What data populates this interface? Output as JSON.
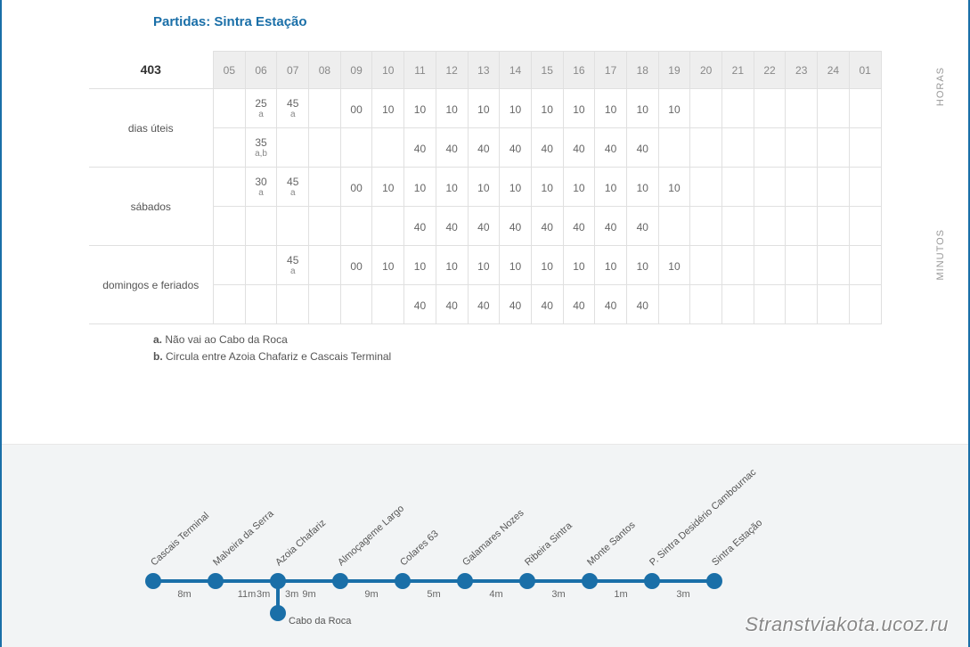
{
  "title": "Partidas: Sintra Estação",
  "route_number": "403",
  "side_labels": {
    "horas": "HORAS",
    "minutos": "MINUTOS"
  },
  "hours": [
    "05",
    "06",
    "07",
    "08",
    "09",
    "10",
    "11",
    "12",
    "13",
    "14",
    "15",
    "16",
    "17",
    "18",
    "19",
    "20",
    "21",
    "22",
    "23",
    "24",
    "01"
  ],
  "groups": [
    {
      "label": "dias úteis",
      "rows": [
        [
          null,
          {
            "m": "25",
            "n": "a"
          },
          {
            "m": "45",
            "n": "a"
          },
          null,
          {
            "m": "00"
          },
          {
            "m": "10"
          },
          {
            "m": "10"
          },
          {
            "m": "10"
          },
          {
            "m": "10"
          },
          {
            "m": "10"
          },
          {
            "m": "10"
          },
          {
            "m": "10"
          },
          {
            "m": "10"
          },
          {
            "m": "10"
          },
          {
            "m": "10"
          },
          null,
          null,
          null,
          null,
          null,
          null
        ],
        [
          null,
          {
            "m": "35",
            "n": "a,b"
          },
          null,
          null,
          null,
          null,
          {
            "m": "40"
          },
          {
            "m": "40"
          },
          {
            "m": "40"
          },
          {
            "m": "40"
          },
          {
            "m": "40"
          },
          {
            "m": "40"
          },
          {
            "m": "40"
          },
          {
            "m": "40"
          },
          null,
          null,
          null,
          null,
          null,
          null,
          null
        ]
      ]
    },
    {
      "label": "sábados",
      "rows": [
        [
          null,
          {
            "m": "30",
            "n": "a"
          },
          {
            "m": "45",
            "n": "a"
          },
          null,
          {
            "m": "00"
          },
          {
            "m": "10"
          },
          {
            "m": "10"
          },
          {
            "m": "10"
          },
          {
            "m": "10"
          },
          {
            "m": "10"
          },
          {
            "m": "10"
          },
          {
            "m": "10"
          },
          {
            "m": "10"
          },
          {
            "m": "10"
          },
          {
            "m": "10"
          },
          null,
          null,
          null,
          null,
          null,
          null
        ],
        [
          null,
          null,
          null,
          null,
          null,
          null,
          {
            "m": "40"
          },
          {
            "m": "40"
          },
          {
            "m": "40"
          },
          {
            "m": "40"
          },
          {
            "m": "40"
          },
          {
            "m": "40"
          },
          {
            "m": "40"
          },
          {
            "m": "40"
          },
          null,
          null,
          null,
          null,
          null,
          null,
          null
        ]
      ]
    },
    {
      "label": "domingos e feriados",
      "rows": [
        [
          null,
          null,
          {
            "m": "45",
            "n": "a"
          },
          null,
          {
            "m": "00"
          },
          {
            "m": "10"
          },
          {
            "m": "10"
          },
          {
            "m": "10"
          },
          {
            "m": "10"
          },
          {
            "m": "10"
          },
          {
            "m": "10"
          },
          {
            "m": "10"
          },
          {
            "m": "10"
          },
          {
            "m": "10"
          },
          {
            "m": "10"
          },
          null,
          null,
          null,
          null,
          null,
          null
        ],
        [
          null,
          null,
          null,
          null,
          null,
          null,
          {
            "m": "40"
          },
          {
            "m": "40"
          },
          {
            "m": "40"
          },
          {
            "m": "40"
          },
          {
            "m": "40"
          },
          {
            "m": "40"
          },
          {
            "m": "40"
          },
          {
            "m": "40"
          },
          null,
          null,
          null,
          null,
          null,
          null,
          null
        ]
      ]
    }
  ],
  "footnotes": [
    {
      "key": "a.",
      "text": "Não vai ao Cabo da Roca"
    },
    {
      "key": "b.",
      "text": "Circula entre Azoia Chafariz e Cascais Terminal"
    }
  ],
  "route_diagram": {
    "color": "#1a6fa8",
    "spacing": 70,
    "stops": [
      "Cascais Terminal",
      "Malveira da Serra",
      "Azoia Chafariz",
      "Almoçageme Largo",
      "Colares 63",
      "Galamares Nozes",
      "Ribeira Sintra",
      "Monte Santos",
      "P. Sintra Desidério Cambournac",
      "Sintra Estação"
    ],
    "durations": [
      "8m",
      "11m",
      "9m",
      "9m",
      "5m",
      "4m",
      "3m",
      "1m",
      "3m"
    ],
    "branch": {
      "from_index": 2,
      "stop": "Cabo da Roca",
      "dur_left": "3m",
      "dur_right": "3m"
    }
  },
  "watermark": "Stranstviakota.ucoz.ru"
}
